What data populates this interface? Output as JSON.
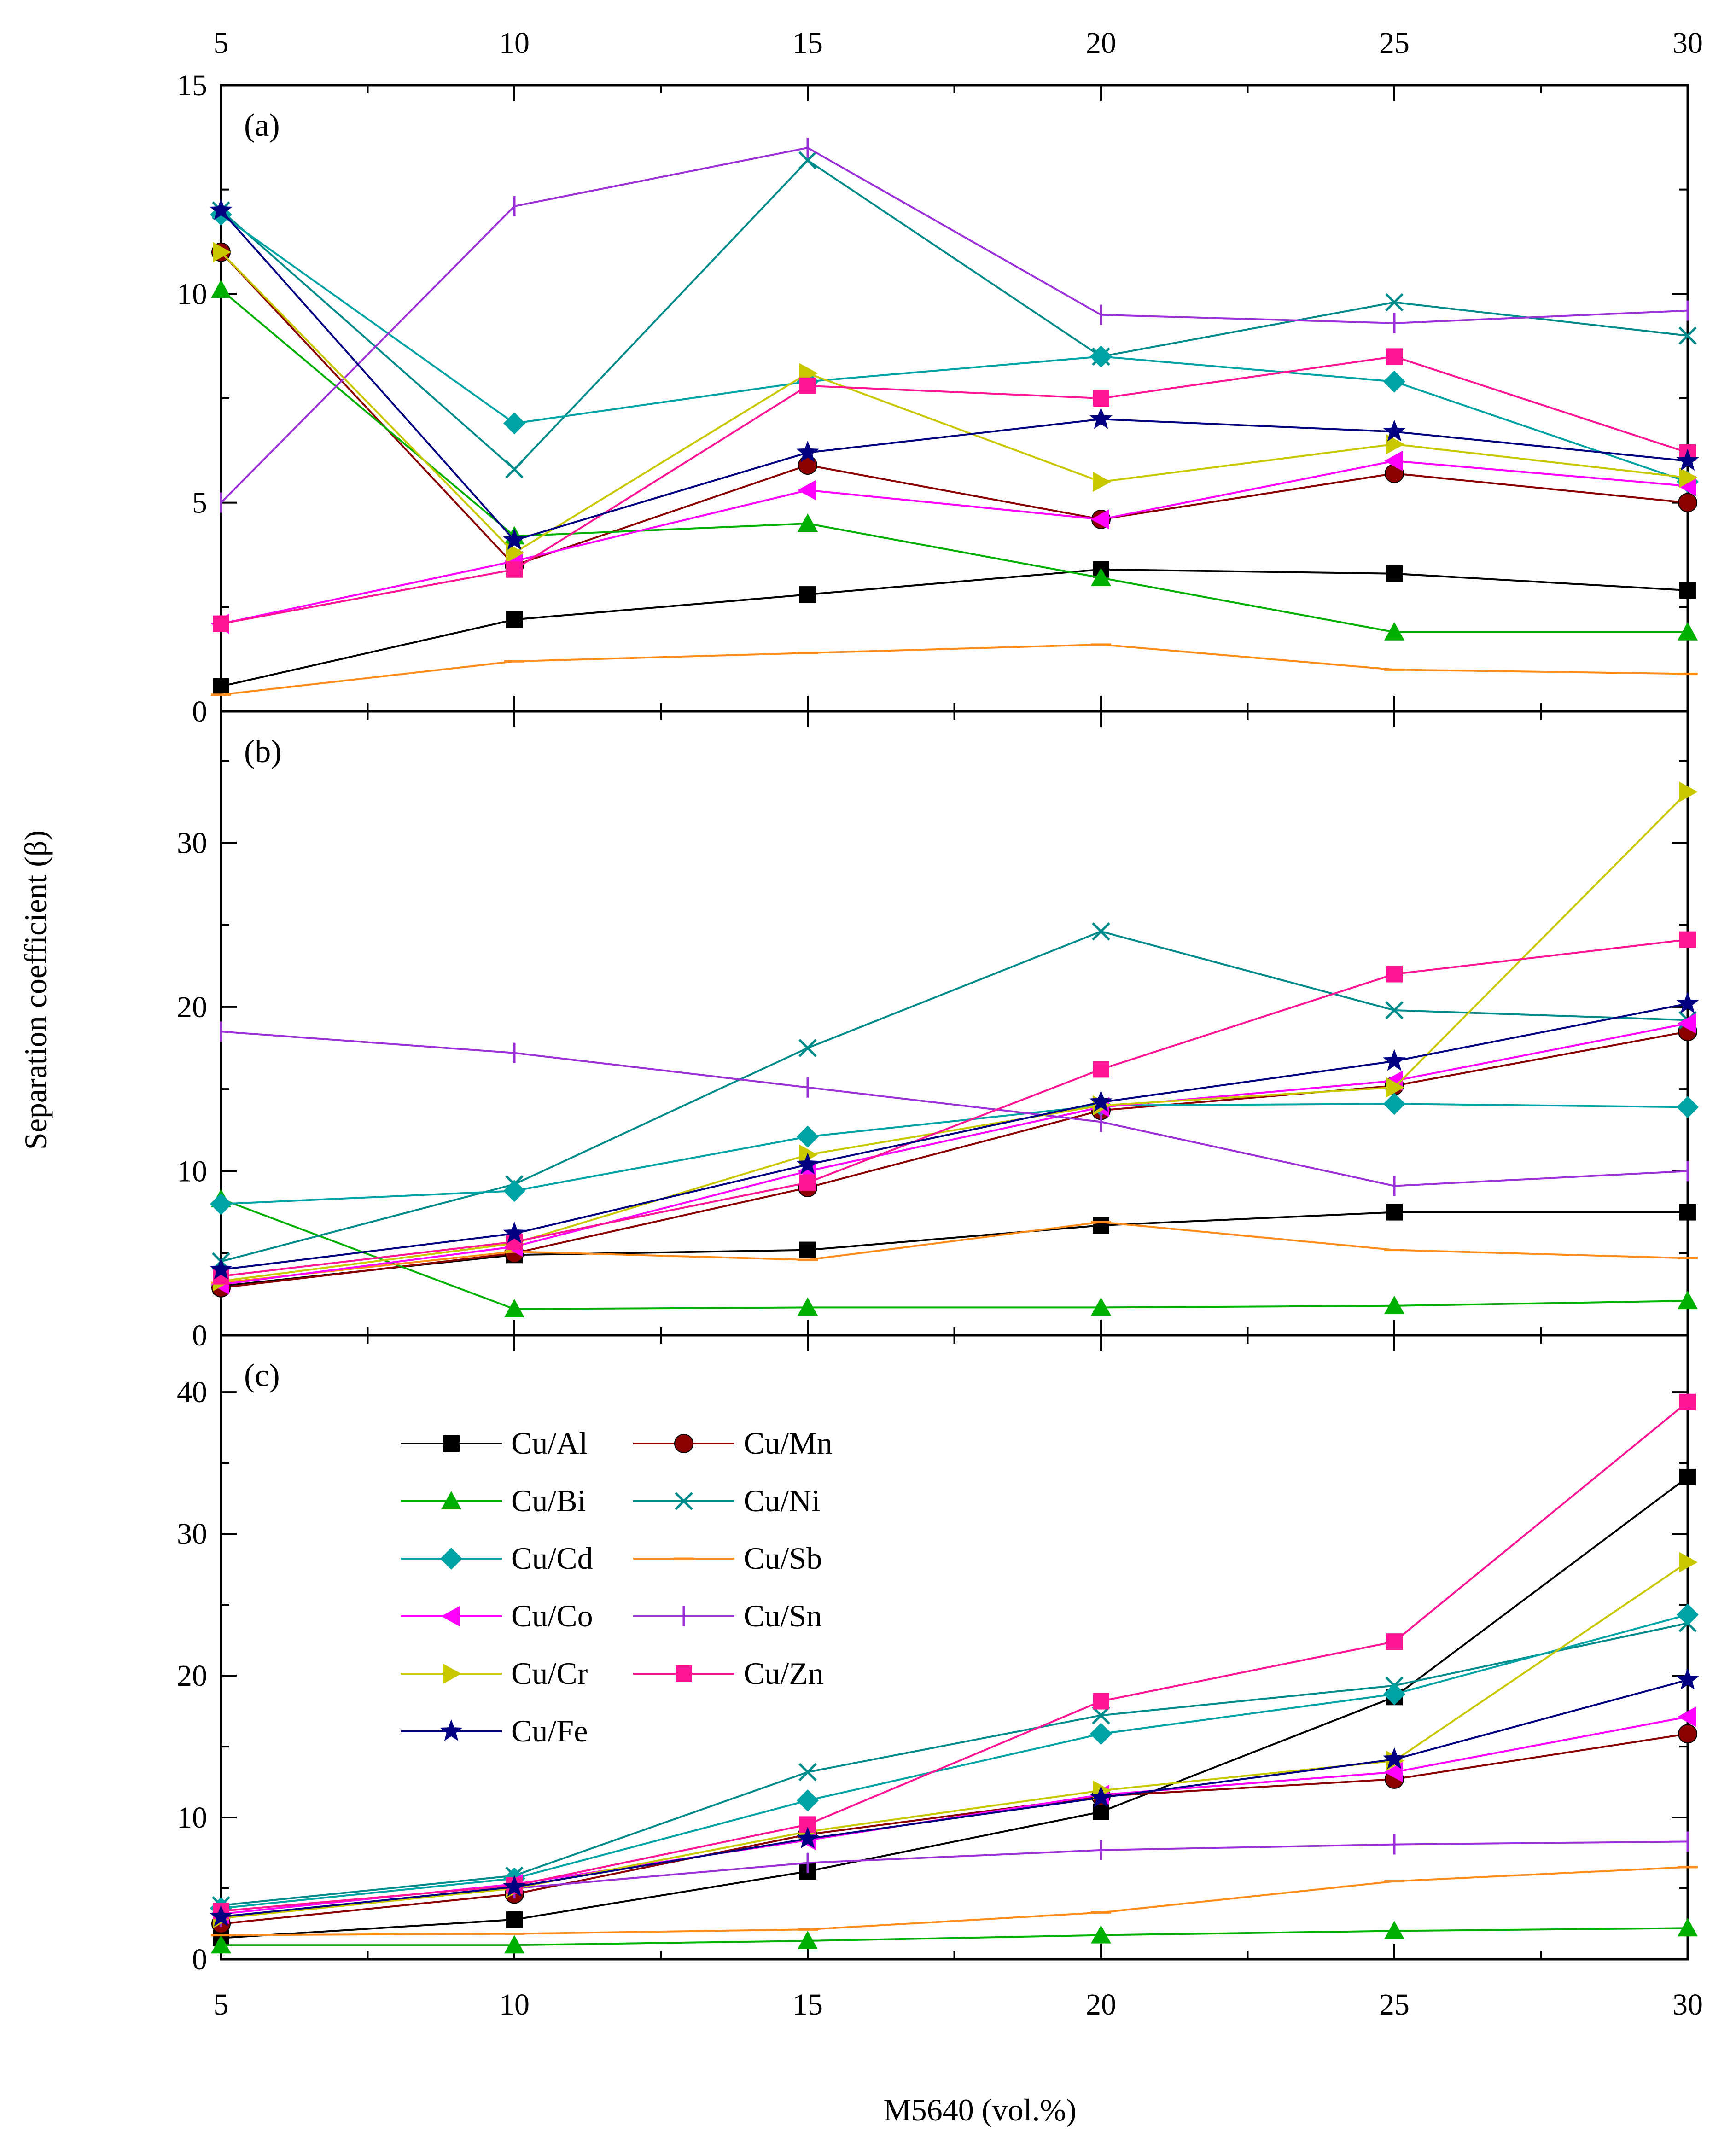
{
  "chart_data": {
    "type": "line",
    "title": "",
    "xlabel": "M5640 (vol.%)",
    "ylabel": "Separation coefficient (β)",
    "x": [
      5,
      10,
      15,
      20,
      25,
      30
    ],
    "xlim": [
      5,
      30
    ],
    "x_ticks": [
      "5",
      "10",
      "15",
      "20",
      "25",
      "30"
    ],
    "legend_location": "panel (c), upper-left",
    "series_style": [
      {
        "name": "Cu/Al",
        "color": "#000000",
        "marker": "square"
      },
      {
        "name": "Cu/Mn",
        "color": "#8B0000",
        "marker": "sphere"
      },
      {
        "name": "Cu/Bi",
        "color": "#00B000",
        "marker": "triangle-up"
      },
      {
        "name": "Cu/Ni",
        "color": "#008B8B",
        "marker": "x"
      },
      {
        "name": "Cu/Cd",
        "color": "#00A3A3",
        "marker": "diamond"
      },
      {
        "name": "Cu/Sb",
        "color": "#FF8C1A",
        "marker": "hline"
      },
      {
        "name": "Cu/Co",
        "color": "#FF00FF",
        "marker": "triangle-left"
      },
      {
        "name": "Cu/Sn",
        "color": "#9B30D9",
        "marker": "vline"
      },
      {
        "name": "Cu/Cr",
        "color": "#C8C800",
        "marker": "triangle-right"
      },
      {
        "name": "Cu/Zn",
        "color": "#FF1493",
        "marker": "square"
      },
      {
        "name": "Cu/Fe",
        "color": "#000080",
        "marker": "star"
      }
    ],
    "legend_order": [
      "Cu/Al",
      "Cu/Mn",
      "Cu/Bi",
      "Cu/Ni",
      "Cu/Cd",
      "Cu/Sb",
      "Cu/Co",
      "Cu/Sn",
      "Cu/Cr",
      "Cu/Zn",
      "Cu/Fe"
    ],
    "panels": [
      {
        "label": "(a)",
        "ylim": [
          0,
          15
        ],
        "y_ticks": [
          "0",
          "5",
          "10",
          "15"
        ],
        "series": [
          {
            "name": "Cu/Al",
            "values": [
              0.6,
              2.2,
              2.8,
              3.4,
              3.3,
              2.9
            ]
          },
          {
            "name": "Cu/Mn",
            "values": [
              11.0,
              3.5,
              5.9,
              4.6,
              5.7,
              5.0
            ]
          },
          {
            "name": "Cu/Bi",
            "values": [
              10.1,
              4.2,
              4.5,
              3.2,
              1.9,
              1.9
            ]
          },
          {
            "name": "Cu/Ni",
            "values": [
              12.0,
              5.8,
              13.2,
              8.5,
              9.8,
              9.0
            ]
          },
          {
            "name": "Cu/Cd",
            "values": [
              11.9,
              6.9,
              7.9,
              8.5,
              7.9,
              5.5
            ]
          },
          {
            "name": "Cu/Sb",
            "values": [
              0.4,
              1.2,
              1.4,
              1.6,
              1.0,
              0.9
            ]
          },
          {
            "name": "Cu/Co",
            "values": [
              2.1,
              3.6,
              5.3,
              4.6,
              6.0,
              5.4
            ]
          },
          {
            "name": "Cu/Sn",
            "values": [
              5.0,
              12.1,
              13.5,
              9.5,
              9.3,
              9.6
            ]
          },
          {
            "name": "Cu/Cr",
            "values": [
              11.0,
              3.8,
              8.1,
              5.5,
              6.4,
              5.6
            ]
          },
          {
            "name": "Cu/Zn",
            "values": [
              2.1,
              3.4,
              7.8,
              7.5,
              8.5,
              6.2
            ]
          },
          {
            "name": "Cu/Fe",
            "values": [
              12.0,
              4.1,
              6.2,
              7.0,
              6.7,
              6.0
            ]
          }
        ]
      },
      {
        "label": "(b)",
        "ylim": [
          0,
          38
        ],
        "y_ticks": [
          "0",
          "10",
          "20",
          "30"
        ],
        "series": [
          {
            "name": "Cu/Al",
            "values": [
              3.0,
              4.9,
              5.2,
              6.7,
              7.5,
              7.5
            ]
          },
          {
            "name": "Cu/Mn",
            "values": [
              2.9,
              5.0,
              9.0,
              13.7,
              15.2,
              18.5
            ]
          },
          {
            "name": "Cu/Bi",
            "values": [
              8.3,
              1.6,
              1.7,
              1.7,
              1.8,
              2.1
            ]
          },
          {
            "name": "Cu/Ni",
            "values": [
              4.5,
              9.2,
              17.5,
              24.6,
              19.8,
              19.2
            ]
          },
          {
            "name": "Cu/Cd",
            "values": [
              8.0,
              8.8,
              12.1,
              14.0,
              14.1,
              13.9
            ]
          },
          {
            "name": "Cu/Sb",
            "values": [
              3.2,
              5.1,
              4.6,
              6.9,
              5.2,
              4.7
            ]
          },
          {
            "name": "Cu/Co",
            "values": [
              3.1,
              5.4,
              10.0,
              13.9,
              15.5,
              19.0
            ]
          },
          {
            "name": "Cu/Sn",
            "values": [
              18.5,
              17.2,
              15.1,
              13.0,
              9.1,
              10.0
            ]
          },
          {
            "name": "Cu/Cr",
            "values": [
              3.3,
              5.6,
              11.0,
              14.0,
              15.1,
              33.1
            ]
          },
          {
            "name": "Cu/Zn",
            "values": [
              3.6,
              5.7,
              9.3,
              16.2,
              22.0,
              24.1
            ]
          },
          {
            "name": "Cu/Fe",
            "values": [
              4.0,
              6.2,
              10.4,
              14.2,
              16.7,
              20.2
            ]
          }
        ]
      },
      {
        "label": "(c)",
        "ylim": [
          0,
          44
        ],
        "y_ticks": [
          "0",
          "10",
          "20",
          "30",
          "40"
        ],
        "series": [
          {
            "name": "Cu/Al",
            "values": [
              1.5,
              2.8,
              6.2,
              10.4,
              18.5,
              34.0
            ]
          },
          {
            "name": "Cu/Mn",
            "values": [
              2.5,
              4.6,
              8.8,
              11.5,
              12.7,
              15.9
            ]
          },
          {
            "name": "Cu/Bi",
            "values": [
              1.0,
              1.0,
              1.3,
              1.7,
              2.0,
              2.2
            ]
          },
          {
            "name": "Cu/Ni",
            "values": [
              3.8,
              5.9,
              13.2,
              17.2,
              19.3,
              23.7
            ]
          },
          {
            "name": "Cu/Cd",
            "values": [
              3.6,
              5.7,
              11.2,
              15.9,
              18.7,
              24.3
            ]
          },
          {
            "name": "Cu/Sb",
            "values": [
              1.7,
              1.8,
              2.1,
              3.3,
              5.5,
              6.5
            ]
          },
          {
            "name": "Cu/Co",
            "values": [
              3.2,
              5.3,
              8.4,
              11.6,
              13.2,
              17.1
            ]
          },
          {
            "name": "Cu/Sn",
            "values": [
              3.0,
              5.0,
              6.8,
              7.7,
              8.1,
              8.3
            ]
          },
          {
            "name": "Cu/Cr",
            "values": [
              2.9,
              5.0,
              9.0,
              11.9,
              14.0,
              28.0
            ]
          },
          {
            "name": "Cu/Zn",
            "values": [
              3.4,
              5.2,
              9.5,
              18.2,
              22.4,
              39.3
            ]
          },
          {
            "name": "Cu/Fe",
            "values": [
              3.0,
              5.1,
              8.5,
              11.4,
              14.1,
              19.7
            ]
          }
        ]
      }
    ]
  }
}
